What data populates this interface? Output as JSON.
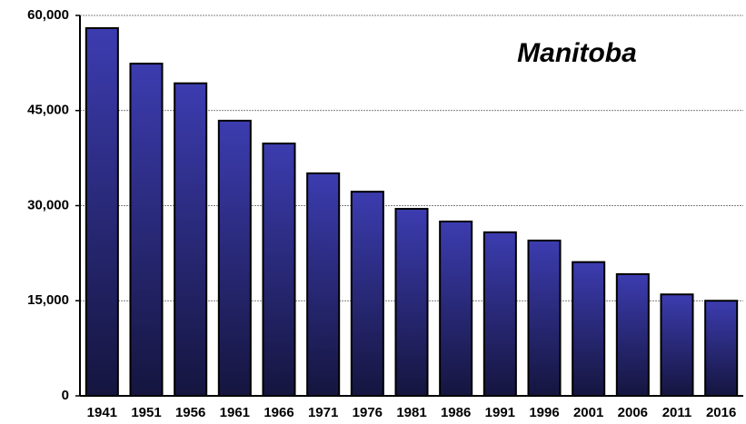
{
  "chart_data": {
    "type": "bar",
    "title": "Manitoba",
    "categories": [
      "1941",
      "1951",
      "1956",
      "1961",
      "1966",
      "1971",
      "1976",
      "1981",
      "1986",
      "1991",
      "1996",
      "2001",
      "2006",
      "2011",
      "2016"
    ],
    "values": [
      58000,
      52400,
      49300,
      43400,
      39800,
      35100,
      32200,
      29500,
      27500,
      25800,
      24500,
      21100,
      19200,
      16000,
      15000
    ],
    "color": "#3a3aa8",
    "ylim": [
      0,
      60000
    ],
    "yticks": [
      {
        "value": 0,
        "label": "0"
      },
      {
        "value": 15000,
        "label": "15,000"
      },
      {
        "value": 30000,
        "label": "30,000"
      },
      {
        "value": 45000,
        "label": "45,000"
      },
      {
        "value": 60000,
        "label": "60,000"
      }
    ],
    "grid": true
  }
}
